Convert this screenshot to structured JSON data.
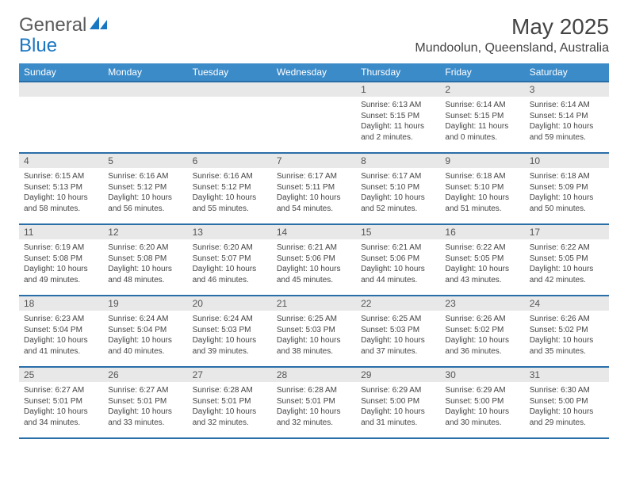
{
  "brand": {
    "general": "General",
    "blue": "Blue"
  },
  "title": "May 2025",
  "location": "Mundoolun, Queensland, Australia",
  "columns": [
    "Sunday",
    "Monday",
    "Tuesday",
    "Wednesday",
    "Thursday",
    "Friday",
    "Saturday"
  ],
  "colors": {
    "header_bg": "#3b8bc9",
    "header_border": "#2a6ea8",
    "daynum_bg": "#e8e8e8",
    "brand_blue": "#1976c1",
    "text": "#444444"
  },
  "weeks": [
    [
      {
        "day": "",
        "sunrise": "",
        "sunset": "",
        "daylight1": "",
        "daylight2": ""
      },
      {
        "day": "",
        "sunrise": "",
        "sunset": "",
        "daylight1": "",
        "daylight2": ""
      },
      {
        "day": "",
        "sunrise": "",
        "sunset": "",
        "daylight1": "",
        "daylight2": ""
      },
      {
        "day": "",
        "sunrise": "",
        "sunset": "",
        "daylight1": "",
        "daylight2": ""
      },
      {
        "day": "1",
        "sunrise": "Sunrise: 6:13 AM",
        "sunset": "Sunset: 5:15 PM",
        "daylight1": "Daylight: 11 hours",
        "daylight2": "and 2 minutes."
      },
      {
        "day": "2",
        "sunrise": "Sunrise: 6:14 AM",
        "sunset": "Sunset: 5:15 PM",
        "daylight1": "Daylight: 11 hours",
        "daylight2": "and 0 minutes."
      },
      {
        "day": "3",
        "sunrise": "Sunrise: 6:14 AM",
        "sunset": "Sunset: 5:14 PM",
        "daylight1": "Daylight: 10 hours",
        "daylight2": "and 59 minutes."
      }
    ],
    [
      {
        "day": "4",
        "sunrise": "Sunrise: 6:15 AM",
        "sunset": "Sunset: 5:13 PM",
        "daylight1": "Daylight: 10 hours",
        "daylight2": "and 58 minutes."
      },
      {
        "day": "5",
        "sunrise": "Sunrise: 6:16 AM",
        "sunset": "Sunset: 5:12 PM",
        "daylight1": "Daylight: 10 hours",
        "daylight2": "and 56 minutes."
      },
      {
        "day": "6",
        "sunrise": "Sunrise: 6:16 AM",
        "sunset": "Sunset: 5:12 PM",
        "daylight1": "Daylight: 10 hours",
        "daylight2": "and 55 minutes."
      },
      {
        "day": "7",
        "sunrise": "Sunrise: 6:17 AM",
        "sunset": "Sunset: 5:11 PM",
        "daylight1": "Daylight: 10 hours",
        "daylight2": "and 54 minutes."
      },
      {
        "day": "8",
        "sunrise": "Sunrise: 6:17 AM",
        "sunset": "Sunset: 5:10 PM",
        "daylight1": "Daylight: 10 hours",
        "daylight2": "and 52 minutes."
      },
      {
        "day": "9",
        "sunrise": "Sunrise: 6:18 AM",
        "sunset": "Sunset: 5:10 PM",
        "daylight1": "Daylight: 10 hours",
        "daylight2": "and 51 minutes."
      },
      {
        "day": "10",
        "sunrise": "Sunrise: 6:18 AM",
        "sunset": "Sunset: 5:09 PM",
        "daylight1": "Daylight: 10 hours",
        "daylight2": "and 50 minutes."
      }
    ],
    [
      {
        "day": "11",
        "sunrise": "Sunrise: 6:19 AM",
        "sunset": "Sunset: 5:08 PM",
        "daylight1": "Daylight: 10 hours",
        "daylight2": "and 49 minutes."
      },
      {
        "day": "12",
        "sunrise": "Sunrise: 6:20 AM",
        "sunset": "Sunset: 5:08 PM",
        "daylight1": "Daylight: 10 hours",
        "daylight2": "and 48 minutes."
      },
      {
        "day": "13",
        "sunrise": "Sunrise: 6:20 AM",
        "sunset": "Sunset: 5:07 PM",
        "daylight1": "Daylight: 10 hours",
        "daylight2": "and 46 minutes."
      },
      {
        "day": "14",
        "sunrise": "Sunrise: 6:21 AM",
        "sunset": "Sunset: 5:06 PM",
        "daylight1": "Daylight: 10 hours",
        "daylight2": "and 45 minutes."
      },
      {
        "day": "15",
        "sunrise": "Sunrise: 6:21 AM",
        "sunset": "Sunset: 5:06 PM",
        "daylight1": "Daylight: 10 hours",
        "daylight2": "and 44 minutes."
      },
      {
        "day": "16",
        "sunrise": "Sunrise: 6:22 AM",
        "sunset": "Sunset: 5:05 PM",
        "daylight1": "Daylight: 10 hours",
        "daylight2": "and 43 minutes."
      },
      {
        "day": "17",
        "sunrise": "Sunrise: 6:22 AM",
        "sunset": "Sunset: 5:05 PM",
        "daylight1": "Daylight: 10 hours",
        "daylight2": "and 42 minutes."
      }
    ],
    [
      {
        "day": "18",
        "sunrise": "Sunrise: 6:23 AM",
        "sunset": "Sunset: 5:04 PM",
        "daylight1": "Daylight: 10 hours",
        "daylight2": "and 41 minutes."
      },
      {
        "day": "19",
        "sunrise": "Sunrise: 6:24 AM",
        "sunset": "Sunset: 5:04 PM",
        "daylight1": "Daylight: 10 hours",
        "daylight2": "and 40 minutes."
      },
      {
        "day": "20",
        "sunrise": "Sunrise: 6:24 AM",
        "sunset": "Sunset: 5:03 PM",
        "daylight1": "Daylight: 10 hours",
        "daylight2": "and 39 minutes."
      },
      {
        "day": "21",
        "sunrise": "Sunrise: 6:25 AM",
        "sunset": "Sunset: 5:03 PM",
        "daylight1": "Daylight: 10 hours",
        "daylight2": "and 38 minutes."
      },
      {
        "day": "22",
        "sunrise": "Sunrise: 6:25 AM",
        "sunset": "Sunset: 5:03 PM",
        "daylight1": "Daylight: 10 hours",
        "daylight2": "and 37 minutes."
      },
      {
        "day": "23",
        "sunrise": "Sunrise: 6:26 AM",
        "sunset": "Sunset: 5:02 PM",
        "daylight1": "Daylight: 10 hours",
        "daylight2": "and 36 minutes."
      },
      {
        "day": "24",
        "sunrise": "Sunrise: 6:26 AM",
        "sunset": "Sunset: 5:02 PM",
        "daylight1": "Daylight: 10 hours",
        "daylight2": "and 35 minutes."
      }
    ],
    [
      {
        "day": "25",
        "sunrise": "Sunrise: 6:27 AM",
        "sunset": "Sunset: 5:01 PM",
        "daylight1": "Daylight: 10 hours",
        "daylight2": "and 34 minutes."
      },
      {
        "day": "26",
        "sunrise": "Sunrise: 6:27 AM",
        "sunset": "Sunset: 5:01 PM",
        "daylight1": "Daylight: 10 hours",
        "daylight2": "and 33 minutes."
      },
      {
        "day": "27",
        "sunrise": "Sunrise: 6:28 AM",
        "sunset": "Sunset: 5:01 PM",
        "daylight1": "Daylight: 10 hours",
        "daylight2": "and 32 minutes."
      },
      {
        "day": "28",
        "sunrise": "Sunrise: 6:28 AM",
        "sunset": "Sunset: 5:01 PM",
        "daylight1": "Daylight: 10 hours",
        "daylight2": "and 32 minutes."
      },
      {
        "day": "29",
        "sunrise": "Sunrise: 6:29 AM",
        "sunset": "Sunset: 5:00 PM",
        "daylight1": "Daylight: 10 hours",
        "daylight2": "and 31 minutes."
      },
      {
        "day": "30",
        "sunrise": "Sunrise: 6:29 AM",
        "sunset": "Sunset: 5:00 PM",
        "daylight1": "Daylight: 10 hours",
        "daylight2": "and 30 minutes."
      },
      {
        "day": "31",
        "sunrise": "Sunrise: 6:30 AM",
        "sunset": "Sunset: 5:00 PM",
        "daylight1": "Daylight: 10 hours",
        "daylight2": "and 29 minutes."
      }
    ]
  ]
}
